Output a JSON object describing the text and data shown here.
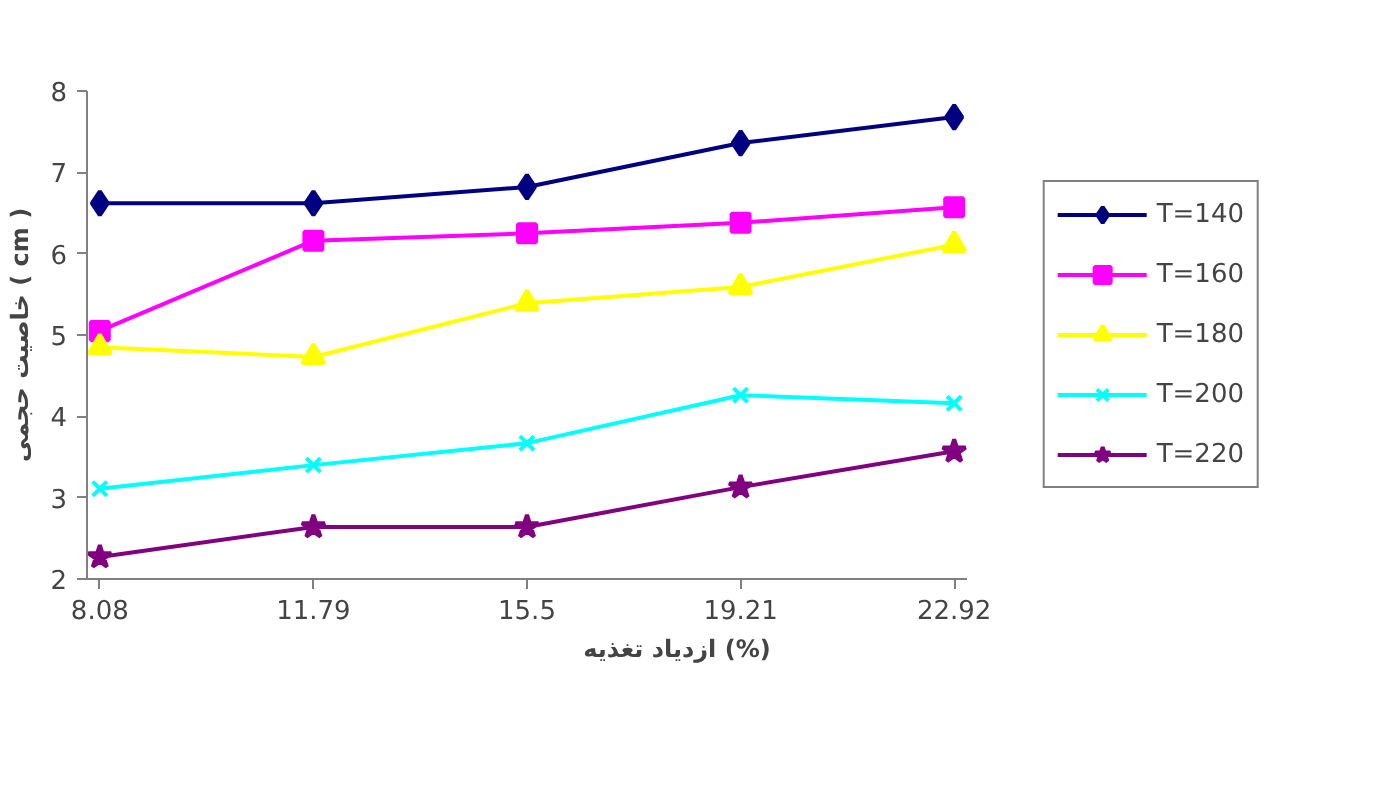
{
  "chart_data": {
    "type": "line",
    "xlabel": "ازدیاد تغذیه (%)",
    "ylabel": "خاصیت حجمی ( cm )",
    "categories": [
      "8.08",
      "11.79",
      "15.5",
      "19.21",
      "22.92"
    ],
    "ylim": [
      2,
      8
    ],
    "yticks": [
      2,
      3,
      4,
      5,
      6,
      7,
      8
    ],
    "grid": false,
    "legend": "right",
    "series": [
      {
        "name": "T=140",
        "color": "#000080",
        "marker": "diamond",
        "values": [
          6.62,
          6.62,
          6.82,
          7.36,
          7.68
        ]
      },
      {
        "name": "T=160",
        "color": "#ff00ff",
        "marker": "square",
        "values": [
          5.05,
          6.16,
          6.25,
          6.38,
          6.57
        ]
      },
      {
        "name": "T=180",
        "color": "#ffff00",
        "marker": "triangle",
        "values": [
          4.85,
          4.73,
          5.39,
          5.59,
          6.11
        ]
      },
      {
        "name": "T=200",
        "color": "#00ffff",
        "marker": "cross",
        "values": [
          3.11,
          3.4,
          3.67,
          4.26,
          4.16
        ]
      },
      {
        "name": "T=220",
        "color": "#800080",
        "marker": "star",
        "values": [
          2.27,
          2.64,
          2.64,
          3.13,
          3.57
        ]
      }
    ]
  }
}
